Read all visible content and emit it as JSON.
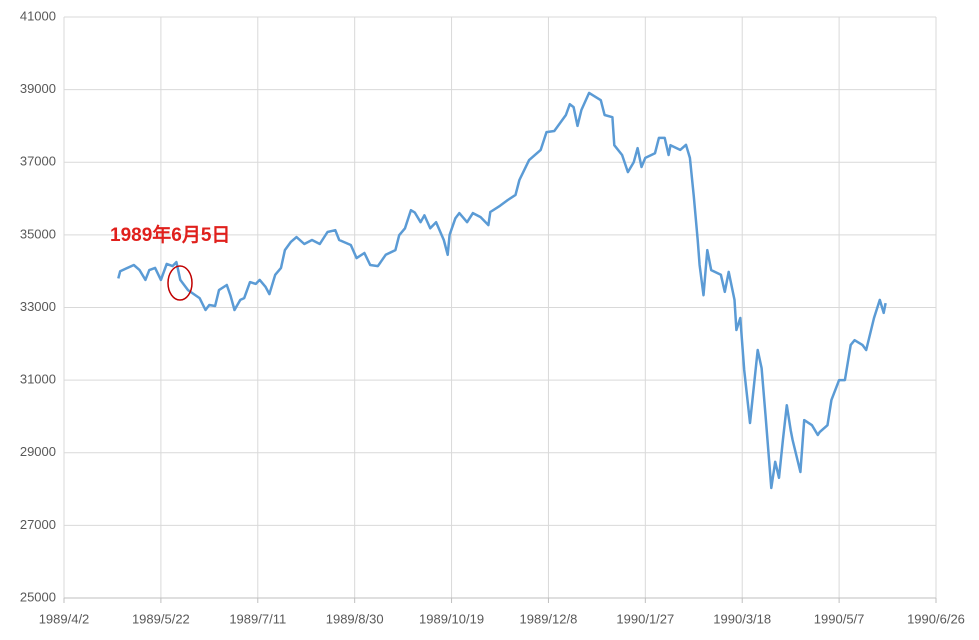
{
  "chart_data": {
    "type": "line",
    "annotation": "1989年6月5日",
    "x": [
      "1989/4/30",
      "1989/5/1",
      "1989/5/8",
      "1989/5/11",
      "1989/5/14",
      "1989/5/16",
      "1989/5/19",
      "1989/5/22",
      "1989/5/25",
      "1989/5/28",
      "1989/5/30",
      "1989/6/1",
      "1989/6/5",
      "1989/6/11",
      "1989/6/14",
      "1989/6/16",
      "1989/6/19",
      "1989/6/21",
      "1989/6/25",
      "1989/6/27",
      "1989/6/29",
      "1989/7/2",
      "1989/7/4",
      "1989/7/7",
      "1989/7/10",
      "1989/7/12",
      "1989/7/15",
      "1989/7/17",
      "1989/7/20",
      "1989/7/23",
      "1989/7/25",
      "1989/7/28",
      "1989/7/31",
      "1989/8/4",
      "1989/8/8",
      "1989/8/12",
      "1989/8/16",
      "1989/8/20",
      "1989/8/22",
      "1989/8/28",
      "1989/8/31",
      "1989/9/4",
      "1989/9/7",
      "1989/9/11",
      "1989/9/15",
      "1989/9/20",
      "1989/9/22",
      "1989/9/25",
      "1989/9/28",
      "1989/9/30",
      "1989/10/3",
      "1989/10/5",
      "1989/10/8",
      "1989/10/11",
      "1989/10/15",
      "1989/10/17",
      "1989/10/18",
      "1989/10/21",
      "1989/10/23",
      "1989/10/27",
      "1989/10/30",
      "1989/11/3",
      "1989/11/7",
      "1989/11/8",
      "1989/11/13",
      "1989/11/17",
      "1989/11/21",
      "1989/11/23",
      "1989/11/28",
      "1989/12/4",
      "1989/12/7",
      "1989/12/11",
      "1989/12/17",
      "1989/12/19",
      "1989/12/21",
      "1989/12/23",
      "1989/12/25",
      "1989/12/29",
      "1990/1/4",
      "1990/1/6",
      "1990/1/10",
      "1990/1/11",
      "1990/1/15",
      "1990/1/18",
      "1990/1/21",
      "1990/1/23",
      "1990/1/25",
      "1990/1/27",
      "1990/2/1",
      "1990/2/3",
      "1990/2/6",
      "1990/2/8",
      "1990/2/9",
      "1990/2/14",
      "1990/2/17",
      "1990/2/19",
      "1990/2/21",
      "1990/2/23",
      "1990/2/24",
      "1990/2/26",
      "1990/2/28",
      "1990/3/2",
      "1990/3/7",
      "1990/3/9",
      "1990/3/11",
      "1990/3/14",
      "1990/3/15",
      "1990/3/17",
      "1990/3/19",
      "1990/3/22",
      "1990/3/26",
      "1990/3/28",
      "1990/3/30",
      "1990/4/2",
      "1990/4/4",
      "1990/4/6",
      "1990/4/8",
      "1990/4/10",
      "1990/4/12",
      "1990/4/13",
      "1990/4/17",
      "1990/4/19",
      "1990/4/23",
      "1990/4/26",
      "1990/4/27",
      "1990/5/1",
      "1990/5/3",
      "1990/5/7",
      "1990/5/10",
      "1990/5/13",
      "1990/5/15",
      "1990/5/19",
      "1990/5/21",
      "1990/5/25",
      "1990/5/28",
      "1990/5/30",
      "1990/5/31"
    ],
    "series": [
      {
        "color": "#5b9bd5",
        "values": [
          33800,
          34000,
          34170,
          34030,
          33760,
          34030,
          34090,
          33760,
          34200,
          34140,
          34250,
          33760,
          33480,
          33260,
          32930,
          33070,
          33040,
          33480,
          33620,
          33320,
          32930,
          33210,
          33260,
          33700,
          33650,
          33760,
          33570,
          33370,
          33900,
          34090,
          34580,
          34800,
          34940,
          34750,
          34860,
          34750,
          35080,
          35130,
          34860,
          34720,
          34360,
          34500,
          34170,
          34140,
          34450,
          34580,
          34990,
          35180,
          35680,
          35620,
          35350,
          35540,
          35180,
          35350,
          34860,
          34450,
          35000,
          35460,
          35600,
          35350,
          35600,
          35490,
          35270,
          35630,
          35800,
          35960,
          36100,
          36510,
          37060,
          37340,
          37830,
          37860,
          38300,
          38600,
          38520,
          38000,
          38440,
          38910,
          38710,
          38300,
          38240,
          37470,
          37200,
          36730,
          37000,
          37390,
          36870,
          37120,
          37250,
          37670,
          37670,
          37200,
          37470,
          37340,
          37480,
          37120,
          36060,
          34860,
          34170,
          33340,
          34580,
          34030,
          33900,
          33430,
          33980,
          33210,
          32380,
          32710,
          31280,
          29820,
          31830,
          31330,
          30040,
          28030,
          28750,
          28310,
          29350,
          30310,
          29620,
          29350,
          28470,
          29900,
          29760,
          29490,
          29570,
          29760,
          30450,
          31000,
          31000,
          31970,
          32100,
          31970,
          31830,
          32710,
          33210,
          32850,
          33120
        ]
      }
    ],
    "xlim": [
      "1989/4/2",
      "1990/6/26"
    ],
    "xticks": [
      "1989/4/2",
      "1989/5/22",
      "1989/7/11",
      "1989/8/30",
      "1989/10/19",
      "1989/12/8",
      "1990/1/27",
      "1990/3/18",
      "1990/5/7",
      "1990/6/26"
    ],
    "ylim": [
      25000,
      41000
    ],
    "yticks": [
      25000,
      27000,
      29000,
      31000,
      33000,
      35000,
      37000,
      39000,
      41000
    ],
    "grid": true
  }
}
